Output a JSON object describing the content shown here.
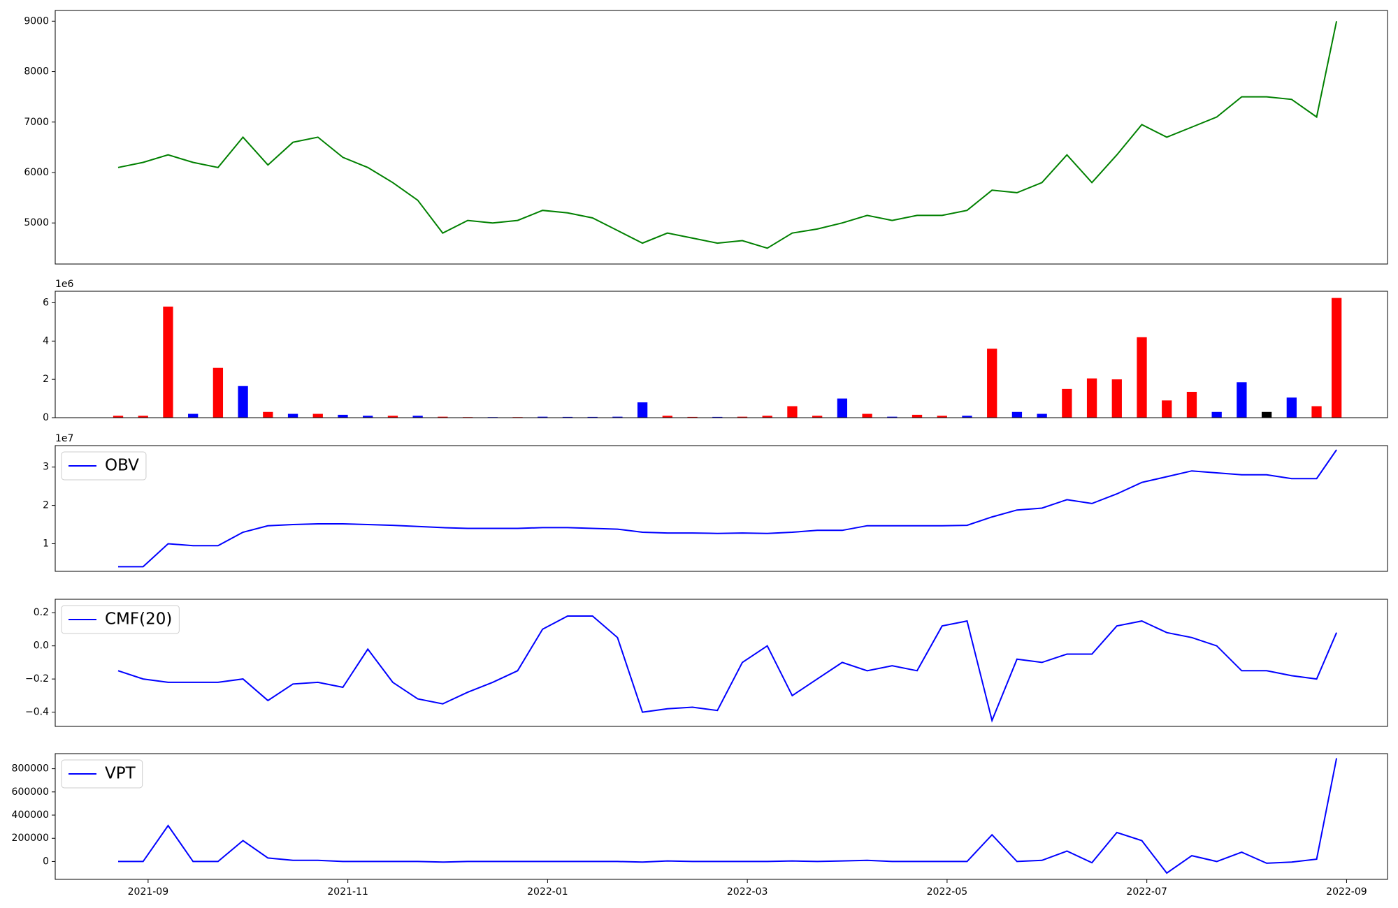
{
  "chart_data": [
    {
      "type": "line",
      "color": "green",
      "x": [
        8.7,
        8.95,
        9.2,
        9.45,
        9.7,
        9.95,
        10.2,
        10.45,
        10.7,
        10.95,
        11.2,
        11.45,
        11.7,
        11.95,
        12.2,
        12.45,
        12.7,
        12.95,
        13.2,
        13.45,
        13.7,
        13.95,
        14.2,
        14.45,
        14.7,
        14.95,
        15.2,
        15.45,
        15.7,
        15.95,
        16.2,
        16.45,
        16.7,
        16.95,
        17.2,
        17.45,
        17.7,
        17.95,
        18.2,
        18.45,
        18.7,
        18.95,
        19.2,
        19.45,
        19.7,
        19.95,
        20.2,
        20.45,
        20.7,
        20.9
      ],
      "values": [
        6100,
        6200,
        6350,
        6200,
        6100,
        6700,
        6150,
        6600,
        6700,
        6300,
        6100,
        5800,
        5450,
        4800,
        5050,
        5000,
        5050,
        5250,
        5200,
        5100,
        4850,
        4600,
        4800,
        4700,
        4600,
        4650,
        4500,
        4800,
        4880,
        5000,
        5150,
        5050,
        5150,
        5150,
        5250,
        5650,
        5600,
        5800,
        6350,
        5800,
        6350,
        6950,
        6700,
        6900,
        7100,
        7500,
        7500,
        7450,
        7100,
        9000
      ],
      "xlim": [
        8.07,
        21.41
      ],
      "ylim": [
        4186,
        9212
      ],
      "yticks": [
        5000,
        6000,
        7000,
        8000,
        9000
      ]
    },
    {
      "type": "bar",
      "offset_label": "1e6",
      "x": [
        8.7,
        8.95,
        9.2,
        9.45,
        9.7,
        9.95,
        10.2,
        10.45,
        10.7,
        10.95,
        11.2,
        11.45,
        11.7,
        11.95,
        12.2,
        12.45,
        12.7,
        12.95,
        13.2,
        13.45,
        13.7,
        13.95,
        14.2,
        14.45,
        14.7,
        14.95,
        15.2,
        15.45,
        15.7,
        15.95,
        16.2,
        16.45,
        16.7,
        16.95,
        17.2,
        17.45,
        17.7,
        17.95,
        18.2,
        18.45,
        18.7,
        18.95,
        19.2,
        19.45,
        19.7,
        19.95,
        20.2,
        20.45,
        20.7,
        20.9
      ],
      "values": [
        0.1,
        0.1,
        5.8,
        0.2,
        2.6,
        1.65,
        0.3,
        0.2,
        0.2,
        0.15,
        0.1,
        0.1,
        0.1,
        0.05,
        0.03,
        0.03,
        0.03,
        0.05,
        0.04,
        0.04,
        0.05,
        0.8,
        0.1,
        0.04,
        0.04,
        0.05,
        0.1,
        0.6,
        0.1,
        1.0,
        0.2,
        0.05,
        0.15,
        0.1,
        0.1,
        3.6,
        0.3,
        0.2,
        1.5,
        2.05,
        2.0,
        4.2,
        0.9,
        1.35,
        0.3,
        1.85,
        0.3,
        1.05,
        0.6,
        6.25
      ],
      "bar_colors": [
        "red",
        "red",
        "red",
        "blue",
        "red",
        "blue",
        "red",
        "blue",
        "red",
        "blue",
        "blue",
        "red",
        "blue",
        "red",
        "red",
        "blue",
        "red",
        "blue",
        "blue",
        "blue",
        "blue",
        "blue",
        "red",
        "red",
        "blue",
        "red",
        "red",
        "red",
        "red",
        "blue",
        "red",
        "blue",
        "red",
        "red",
        "blue",
        "red",
        "blue",
        "blue",
        "red",
        "red",
        "red",
        "red",
        "red",
        "red",
        "blue",
        "blue",
        "black",
        "blue",
        "red",
        "red"
      ],
      "xlim": [
        8.07,
        21.41
      ],
      "ylim": [
        0,
        6.6
      ],
      "yticks": [
        0,
        2,
        4,
        6
      ]
    },
    {
      "type": "line",
      "offset_label": "1e7",
      "legend": "upper left",
      "x": [
        8.7,
        8.95,
        9.2,
        9.45,
        9.7,
        9.95,
        10.2,
        10.45,
        10.7,
        10.95,
        11.2,
        11.45,
        11.7,
        11.95,
        12.2,
        12.45,
        12.7,
        12.95,
        13.2,
        13.45,
        13.7,
        13.95,
        14.2,
        14.45,
        14.7,
        14.95,
        15.2,
        15.45,
        15.7,
        15.95,
        16.2,
        16.45,
        16.7,
        16.95,
        17.2,
        17.45,
        17.7,
        17.95,
        18.2,
        18.45,
        18.7,
        18.95,
        19.2,
        19.45,
        19.7,
        19.95,
        20.2,
        20.45,
        20.7,
        20.9
      ],
      "series": [
        {
          "name": "OBV",
          "color": "blue",
          "values": [
            0.4,
            0.4,
            1.0,
            0.95,
            0.95,
            1.3,
            1.47,
            1.5,
            1.52,
            1.52,
            1.5,
            1.48,
            1.45,
            1.42,
            1.4,
            1.4,
            1.4,
            1.42,
            1.42,
            1.4,
            1.38,
            1.3,
            1.28,
            1.28,
            1.27,
            1.28,
            1.27,
            1.3,
            1.35,
            1.35,
            1.47,
            1.47,
            1.47,
            1.47,
            1.48,
            1.7,
            1.88,
            1.93,
            2.15,
            2.05,
            2.3,
            2.6,
            2.75,
            2.9,
            2.85,
            2.8,
            2.8,
            2.7,
            2.7,
            3.45
          ]
        }
      ],
      "xlim": [
        8.07,
        21.41
      ],
      "ylim": [
        0.28,
        3.56
      ],
      "yticks": [
        1,
        2,
        3
      ]
    },
    {
      "type": "line",
      "legend": "upper left",
      "x": [
        8.7,
        8.95,
        9.2,
        9.45,
        9.7,
        9.95,
        10.2,
        10.45,
        10.7,
        10.95,
        11.2,
        11.45,
        11.7,
        11.95,
        12.2,
        12.45,
        12.7,
        12.95,
        13.2,
        13.45,
        13.7,
        13.95,
        14.2,
        14.45,
        14.7,
        14.95,
        15.2,
        15.45,
        15.7,
        15.95,
        16.2,
        16.45,
        16.7,
        16.95,
        17.2,
        17.45,
        17.7,
        17.95,
        18.2,
        18.45,
        18.7,
        18.95,
        19.2,
        19.45,
        19.7,
        19.95,
        20.2,
        20.45,
        20.7,
        20.9
      ],
      "series": [
        {
          "name": "CMF(20)",
          "color": "blue",
          "values": [
            -0.15,
            -0.2,
            -0.22,
            -0.22,
            -0.22,
            -0.2,
            -0.33,
            -0.23,
            -0.22,
            -0.25,
            -0.02,
            -0.22,
            -0.32,
            -0.35,
            -0.28,
            -0.22,
            -0.15,
            0.1,
            0.18,
            0.18,
            0.05,
            -0.4,
            -0.38,
            -0.37,
            -0.39,
            -0.1,
            0.0,
            -0.3,
            -0.2,
            -0.1,
            -0.15,
            -0.12,
            -0.15,
            0.12,
            0.15,
            -0.45,
            -0.08,
            -0.1,
            -0.05,
            -0.05,
            0.12,
            0.15,
            0.08,
            0.05,
            0.0,
            -0.15,
            -0.15,
            -0.18,
            -0.2,
            0.08
          ]
        }
      ],
      "xlim": [
        8.07,
        21.41
      ],
      "ylim": [
        -0.486,
        0.281
      ],
      "yticks": [
        {
          "value": -0.4,
          "label": "−0.4"
        },
        {
          "value": -0.2,
          "label": "−0.2"
        },
        {
          "value": 0,
          "label": "0.0"
        },
        0.2
      ]
    },
    {
      "type": "line",
      "legend": "upper left",
      "x": [
        8.7,
        8.95,
        9.2,
        9.45,
        9.7,
        9.95,
        10.2,
        10.45,
        10.7,
        10.95,
        11.2,
        11.45,
        11.7,
        11.95,
        12.2,
        12.45,
        12.7,
        12.95,
        13.2,
        13.45,
        13.7,
        13.95,
        14.2,
        14.45,
        14.7,
        14.95,
        15.2,
        15.45,
        15.7,
        15.95,
        16.2,
        16.45,
        16.7,
        16.95,
        17.2,
        17.45,
        17.7,
        17.95,
        18.2,
        18.45,
        18.7,
        18.95,
        19.2,
        19.45,
        19.7,
        19.95,
        20.2,
        20.45,
        20.7,
        20.9
      ],
      "series": [
        {
          "name": "VPT",
          "color": "blue",
          "values": [
            0,
            0,
            310000,
            0,
            0,
            180000,
            30000,
            10000,
            10000,
            0,
            0,
            0,
            0,
            -5000,
            0,
            0,
            0,
            0,
            0,
            0,
            0,
            -5000,
            5000,
            0,
            0,
            0,
            0,
            5000,
            0,
            5000,
            10000,
            0,
            0,
            0,
            0,
            230000,
            0,
            10000,
            90000,
            -10000,
            250000,
            180000,
            -100000,
            50000,
            0,
            80000,
            -15000,
            -5000,
            20000,
            890000
          ]
        }
      ],
      "xlim": [
        8.07,
        21.41
      ],
      "ylim": [
        -154000,
        930000
      ],
      "yticks": [
        0,
        200000,
        400000,
        600000,
        800000
      ],
      "xticks": [
        {
          "value": 9,
          "label": "2021-09"
        },
        {
          "value": 11,
          "label": "2021-11"
        },
        {
          "value": 13,
          "label": "2022-01"
        },
        {
          "value": 15,
          "label": "2022-03"
        },
        {
          "value": 17,
          "label": "2022-05"
        },
        {
          "value": 19,
          "label": "2022-07"
        },
        {
          "value": 21,
          "label": "2022-09"
        }
      ]
    }
  ]
}
